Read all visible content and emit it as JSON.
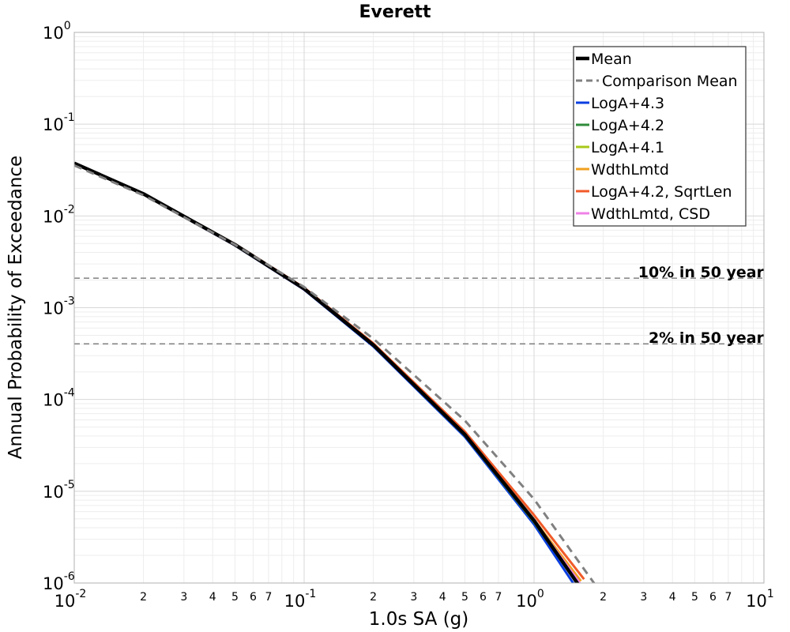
{
  "chart_data": {
    "type": "line",
    "title": "Everett",
    "xlabel": "1.0s SA (g)",
    "ylabel": "Annual Probability of Exceedance",
    "x_scale": "log",
    "y_scale": "log",
    "xlim": [
      0.01,
      10
    ],
    "ylim": [
      1e-06,
      1
    ],
    "x_major_ticks": [
      {
        "base": "10",
        "exp": "-2"
      },
      {
        "base": "10",
        "exp": "-1"
      },
      {
        "base": "10",
        "exp": "0"
      },
      {
        "base": "10",
        "exp": "1"
      }
    ],
    "y_major_ticks": [
      {
        "base": "10",
        "exp": "0"
      },
      {
        "base": "10",
        "exp": "-1"
      },
      {
        "base": "10",
        "exp": "-2"
      },
      {
        "base": "10",
        "exp": "-3"
      },
      {
        "base": "10",
        "exp": "-4"
      },
      {
        "base": "10",
        "exp": "-5"
      },
      {
        "base": "10",
        "exp": "-6"
      }
    ],
    "x_minor_tick_labels": [
      "2",
      "3",
      "4",
      "5",
      "6",
      "7"
    ],
    "grid": true,
    "legend_position": "top-right",
    "reference_lines": [
      {
        "label": "10% in 50 year",
        "y": 0.0021
      },
      {
        "label": "2% in 50 year",
        "y": 0.000404
      }
    ],
    "series": [
      {
        "name": "LogA+4.3",
        "color": "#0a3ee0",
        "style": "solid",
        "x": [
          0.01,
          0.02,
          0.05,
          0.1,
          0.2,
          0.5,
          1.0,
          1.5
        ],
        "y": [
          0.0372,
          0.0172,
          0.00478,
          0.00157,
          0.000378,
          3.92e-05,
          4.35e-06,
          9.5e-07
        ]
      },
      {
        "name": "LogA+4.2",
        "color": "#2e8b3a",
        "style": "solid",
        "x": [
          0.01,
          0.02,
          0.05,
          0.1,
          0.2,
          0.5,
          1.0,
          1.55
        ],
        "y": [
          0.0373,
          0.0173,
          0.00482,
          0.00159,
          0.000386,
          4.05e-05,
          4.6e-06,
          9.8e-07
        ]
      },
      {
        "name": "LogA+4.1",
        "color": "#a8c81a",
        "style": "solid",
        "x": [
          0.01,
          0.02,
          0.05,
          0.1,
          0.2,
          0.5,
          1.0,
          1.55
        ],
        "y": [
          0.0373,
          0.0173,
          0.00483,
          0.0016,
          0.00039,
          4.1e-05,
          4.7e-06,
          1e-06
        ]
      },
      {
        "name": "WdthLmtd",
        "color": "#f0a020",
        "style": "solid",
        "x": [
          0.01,
          0.02,
          0.05,
          0.1,
          0.2,
          0.5,
          1.0,
          1.6
        ],
        "y": [
          0.0374,
          0.0174,
          0.00488,
          0.00162,
          0.000398,
          4.25e-05,
          4.9e-06,
          1.05e-06
        ]
      },
      {
        "name": "LogA+4.2, SqrtLen",
        "color": "#f05a28",
        "style": "solid",
        "x": [
          0.01,
          0.02,
          0.05,
          0.1,
          0.2,
          0.5,
          1.0,
          1.65
        ],
        "y": [
          0.0375,
          0.0175,
          0.00494,
          0.00165,
          0.000408,
          4.47e-05,
          5.5e-06,
          1.1e-06
        ]
      },
      {
        "name": "WdthLmtd, CSD",
        "color": "#f080e8",
        "style": "solid",
        "x": [
          0.01,
          0.02,
          0.05,
          0.1,
          0.2,
          0.5,
          1.0,
          1.58
        ],
        "y": [
          0.0372,
          0.0172,
          0.0048,
          0.00158,
          0.000393,
          4.15e-05,
          4.8e-06,
          1e-06
        ]
      },
      {
        "name": "Mean",
        "color": "#000000",
        "style": "solid-thick",
        "x": [
          0.01,
          0.02,
          0.05,
          0.1,
          0.2,
          0.5,
          1.0,
          1.55
        ],
        "y": [
          0.0375,
          0.0174,
          0.00486,
          0.00161,
          0.000392,
          4.15e-05,
          4.8e-06,
          9.8e-07
        ]
      },
      {
        "name": "Comparison Mean",
        "color": "#808080",
        "style": "dashed",
        "x": [
          0.01,
          0.02,
          0.05,
          0.1,
          0.2,
          0.5,
          1.0,
          1.85
        ],
        "y": [
          0.0355,
          0.0168,
          0.00486,
          0.00168,
          0.00046,
          5.9e-05,
          8.2e-06,
          9.5e-07
        ]
      }
    ],
    "legend_order": [
      "Mean",
      "Comparison Mean",
      "LogA+4.3",
      "LogA+4.2",
      "LogA+4.1",
      "WdthLmtd",
      "LogA+4.2, SqrtLen",
      "WdthLmtd, CSD"
    ]
  }
}
